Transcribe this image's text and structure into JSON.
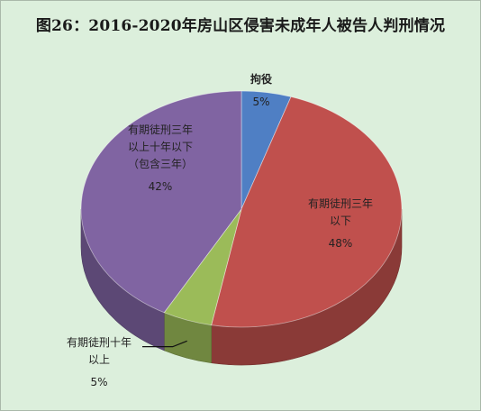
{
  "chart_data": {
    "type": "pie",
    "title": "图26：2016-2020年房山区侵害未成年人被告人判刑情况",
    "slices": [
      {
        "label": "拘役",
        "value": 5,
        "value_label": "5%",
        "color": "#4f7fc4"
      },
      {
        "label": "有期徒刑三年以下",
        "value": 48,
        "value_label": "48%",
        "color": "#c0504d"
      },
      {
        "label": "有期徒刑十年以上",
        "value": 5,
        "value_label": "5%",
        "color": "#9bbb59"
      },
      {
        "label": "有期徒刑三年以上十年以下（包含三年）",
        "value": 42,
        "value_label": "42%",
        "color": "#8064a2"
      }
    ],
    "label_lines": {
      "s0": [
        "拘役"
      ],
      "s1": [
        "有期徒刑三年",
        "以下"
      ],
      "s2": [
        "有期徒刑十年",
        "以上"
      ],
      "s3": [
        "有期徒刑三年",
        "以上十年以下",
        "（包含三年）"
      ]
    },
    "legend": "none",
    "style": "3d-pie"
  }
}
